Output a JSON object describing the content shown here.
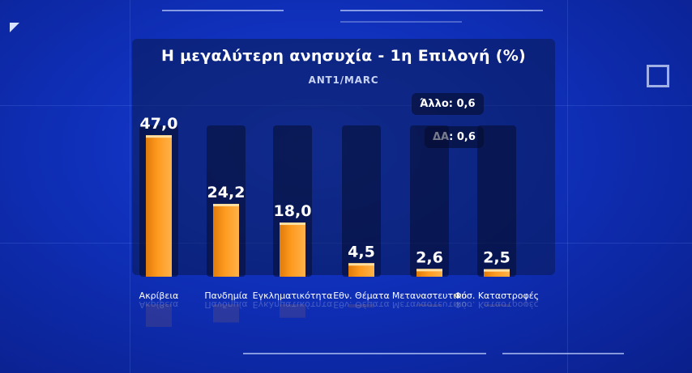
{
  "chart_data": {
    "type": "bar",
    "title": "Η μεγαλύτερη ανησυχία - 1η Επιλογή (%)",
    "subtitle": "ANT1/MARC",
    "categories": [
      "Ακρίβεια",
      "Πανδημία",
      "Εγκληματικότητα",
      "Εθν. Θέματα",
      "Μεταναστευτικό",
      "Φυσ. Καταστροφές"
    ],
    "values": [
      47.0,
      24.2,
      18.0,
      4.5,
      2.6,
      2.5
    ],
    "value_labels": [
      "47,0",
      "24,2",
      "18,0",
      "4,5",
      "2,6",
      "2,5"
    ],
    "ylim": [
      0,
      50
    ],
    "bar_color": "#ff9a1f",
    "annotations": [
      "Άλλο: 0,6",
      "ΔΑ: 0,6"
    ]
  }
}
